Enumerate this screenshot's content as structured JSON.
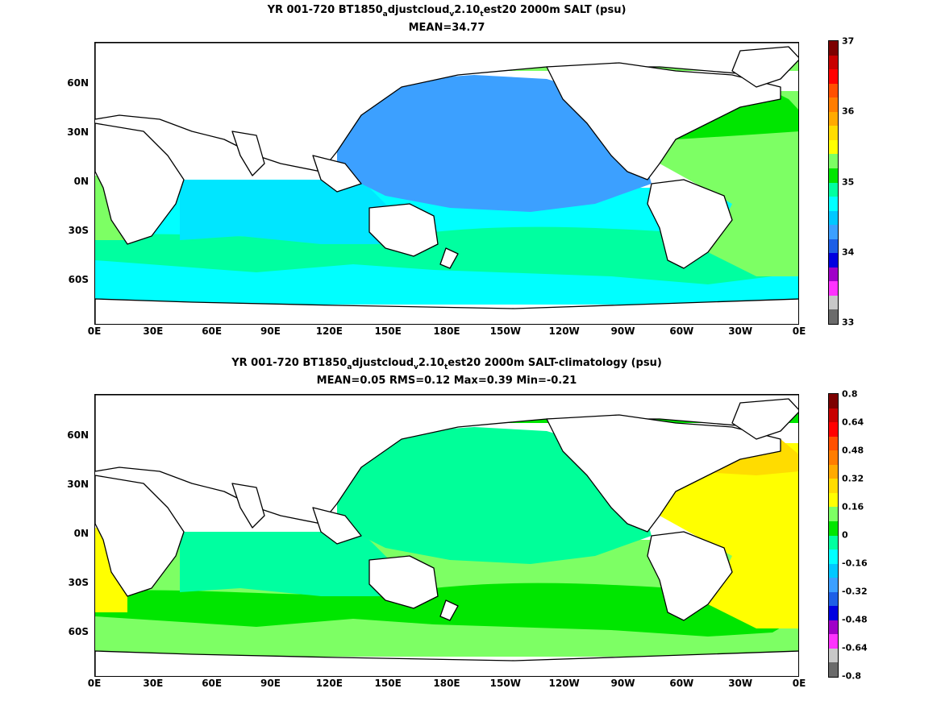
{
  "top": {
    "title_line1": {
      "pre": "YR 001-720 BT1850",
      "s1": "a",
      "mid1": "djustcloud",
      "s2": "v",
      "mid2": "2.10",
      "s3": "t",
      "post": "est20 2000m SALT (psu)"
    },
    "title_line2": "MEAN=34.77",
    "colorbar": {
      "labels": [
        "37",
        "36",
        "35",
        "34",
        "33"
      ],
      "colors": [
        "#6b6b6b",
        "#c8c8c8",
        "#ff33ff",
        "#a000c8",
        "#0000e0",
        "#1e5fe6",
        "#3ca0ff",
        "#00c8ff",
        "#00ffff",
        "#00ffa0",
        "#00e600",
        "#7dff64",
        "#ffff00",
        "#ffdc00",
        "#ffaa00",
        "#ff7d00",
        "#ff5000",
        "#ff0000",
        "#c80000",
        "#7d0000"
      ]
    },
    "fills": {
      "pacific": "#3ca0ff",
      "indian": "#00e6ff",
      "southern": "#00ffff",
      "southbelt": "#00ffa0",
      "atlantic": "#7dff64",
      "natl": "#00e600",
      "arctic": "#7dff64"
    }
  },
  "bottom": {
    "title_line1": {
      "pre": "YR 001-720 BT1850",
      "s1": "a",
      "mid1": "djustcloud",
      "s2": "v",
      "mid2": "2.10",
      "s3": "t",
      "post": "est20 2000m SALT-climatology (psu)"
    },
    "title_line2": "MEAN=0.05   RMS=0.12   Max=0.39   Min=-0.21",
    "colorbar": {
      "labels": [
        "0.8",
        "0.64",
        "0.48",
        "0.32",
        "0.16",
        "0",
        "-0.16",
        "-0.32",
        "-0.48",
        "-0.64",
        "-0.8"
      ],
      "colors": [
        "#6b6b6b",
        "#c8c8c8",
        "#ff33ff",
        "#a000c8",
        "#0000e0",
        "#1e5fe6",
        "#3ca0ff",
        "#00c8ff",
        "#00ffff",
        "#00ffa0",
        "#00e600",
        "#7dff64",
        "#ffff00",
        "#ffdc00",
        "#ffaa00",
        "#ff7d00",
        "#ff5000",
        "#ff0000",
        "#c80000",
        "#7d0000"
      ]
    },
    "fills": {
      "pacific": "#00ff99",
      "indian": "#00ffa0",
      "southern": "#7dff64",
      "southbelt": "#00e600",
      "atlantic": "#ffff00",
      "natl": "#ffdc00",
      "arctic": "#00e600"
    }
  },
  "xticks": [
    "0E",
    "30E",
    "60E",
    "90E",
    "120E",
    "150E",
    "180E",
    "150W",
    "120W",
    "90W",
    "60W",
    "30W",
    "0E"
  ],
  "yticks": [
    "60N",
    "30N",
    "0N",
    "30S",
    "60S"
  ]
}
